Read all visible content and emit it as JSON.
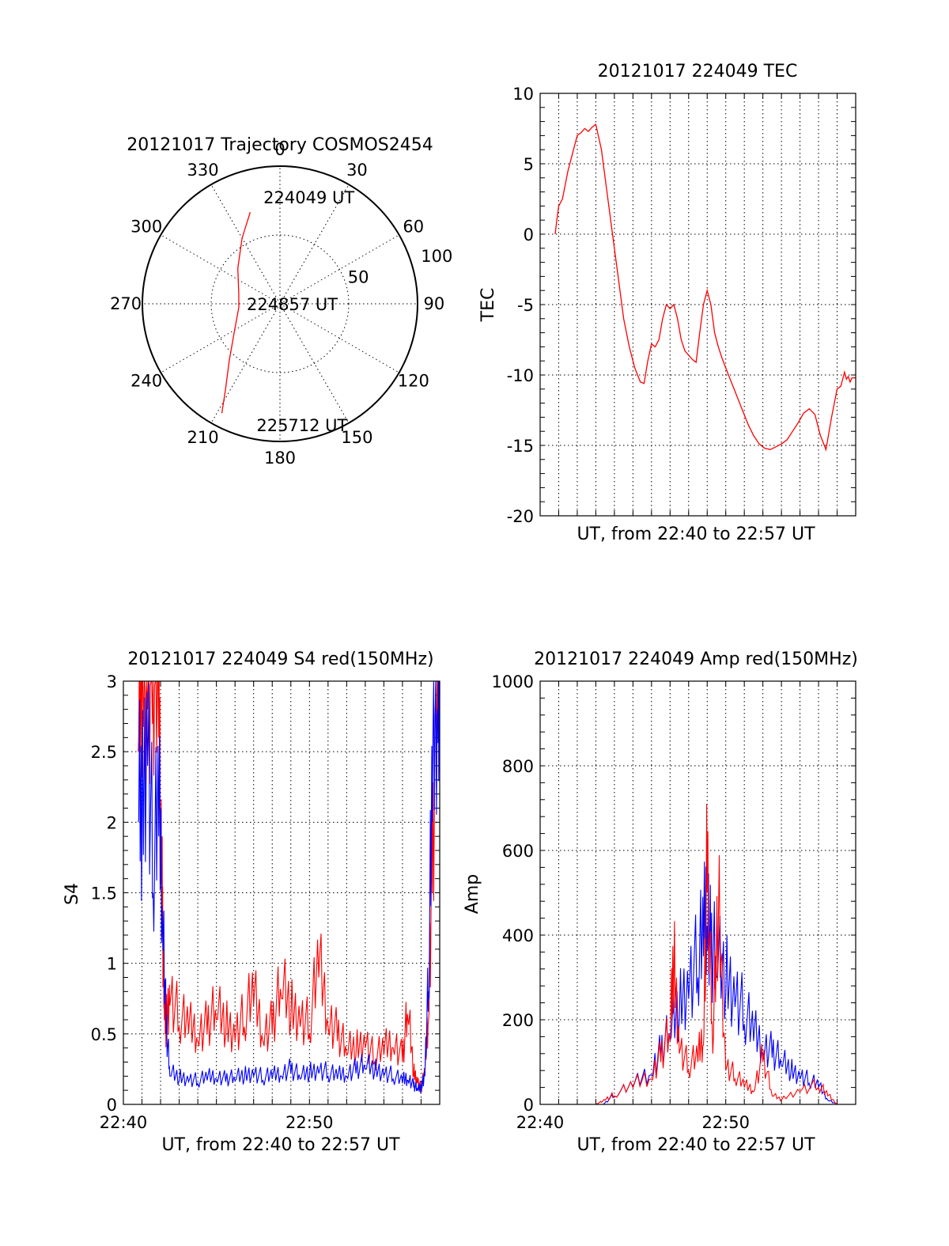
{
  "colors": {
    "red": "#ff0000",
    "blue": "#0000ff",
    "axes": "#000000"
  },
  "chart_data": [
    {
      "type": "polar",
      "title": "20121017 Trajectory COSMOS2454",
      "azimuth_labels": [
        "0",
        "30",
        "60",
        "90",
        "120",
        "150",
        "180",
        "210",
        "240",
        "270",
        "300",
        "330"
      ],
      "radial_labels": [
        "50",
        "100"
      ],
      "grid": true,
      "series": [
        {
          "color": "red",
          "points": [
            {
              "az": 342,
              "r": 70
            },
            {
              "az": 330,
              "r": 55
            },
            {
              "az": 310,
              "r": 40
            },
            {
              "az": 285,
              "r": 31
            },
            {
              "az": 265,
              "r": 30
            },
            {
              "az": 240,
              "r": 38
            },
            {
              "az": 222,
              "r": 55
            },
            {
              "az": 212,
              "r": 75
            },
            {
              "az": 208,
              "r": 90
            }
          ]
        }
      ],
      "annotations": [
        {
          "text": "224049 UT",
          "az": 6,
          "r": 78
        },
        {
          "text": "224857 UT",
          "az": 270,
          "r": 4
        },
        {
          "text": "225712 UT",
          "az": 178,
          "r": 88
        }
      ]
    },
    {
      "type": "line",
      "title": "20121017 224049 TEC",
      "xlabel": "UT, from 22:40 to 22:57 UT",
      "ylabel": "TEC",
      "xlim": [
        0,
        17
      ],
      "ylim": [
        -20,
        10
      ],
      "yticks": [
        10,
        5,
        0,
        -5,
        -10,
        -15,
        -20
      ],
      "grid": true,
      "series": [
        {
          "color": "red",
          "x": [
            0.81,
            0.9,
            1.0,
            1.2,
            1.5,
            1.8,
            2.0,
            2.2,
            2.4,
            2.6,
            2.8,
            3.0,
            3.3,
            3.6,
            3.9,
            4.2,
            4.5,
            4.8,
            5.1,
            5.4,
            5.6,
            5.8,
            6.0,
            6.2,
            6.4,
            6.6,
            6.8,
            7.0,
            7.2,
            7.4,
            7.6,
            7.8,
            8.0,
            8.2,
            8.4,
            8.6,
            8.8,
            9.0,
            9.2,
            9.4,
            9.6,
            9.8,
            10.0,
            10.3,
            10.6,
            10.9,
            11.2,
            11.5,
            11.8,
            12.1,
            12.4,
            12.7,
            13.0,
            13.3,
            13.6,
            13.9,
            14.2,
            14.5,
            14.8,
            15.1,
            15.4,
            15.7,
            16.0,
            16.2,
            16.3,
            16.4,
            16.5,
            16.6,
            16.7,
            16.8,
            17.0
          ],
          "y": [
            0.0,
            1.0,
            2.0,
            2.5,
            4.5,
            6.0,
            7.0,
            7.2,
            7.5,
            7.3,
            7.6,
            7.8,
            6.0,
            3.0,
            0.0,
            -3.0,
            -6.0,
            -8.0,
            -9.5,
            -10.5,
            -10.6,
            -9.0,
            -7.8,
            -8.0,
            -7.5,
            -6.0,
            -5.0,
            -5.3,
            -5.0,
            -6.0,
            -7.5,
            -8.3,
            -8.6,
            -8.9,
            -9.1,
            -7.0,
            -5.0,
            -4.0,
            -5.0,
            -7.0,
            -8.0,
            -8.8,
            -9.5,
            -10.5,
            -11.5,
            -12.5,
            -13.5,
            -14.3,
            -14.9,
            -15.2,
            -15.3,
            -15.1,
            -14.9,
            -14.6,
            -14.0,
            -13.4,
            -12.7,
            -12.4,
            -12.8,
            -14.3,
            -15.3,
            -13.0,
            -11.0,
            -10.8,
            -10.3,
            -9.8,
            -10.3,
            -10.1,
            -10.5,
            -10.2,
            -10.2
          ]
        }
      ]
    },
    {
      "type": "line",
      "title": "20121017 224049 S4 red(150MHz)",
      "xlabel": "UT, from 22:40 to 22:57 UT",
      "ylabel": "S4",
      "xticklabels": [
        "22:40",
        "22:50"
      ],
      "xlim": [
        0,
        17
      ],
      "ylim": [
        0,
        3
      ],
      "yticks": [
        0,
        0.5,
        1,
        1.5,
        2,
        2.5,
        3
      ],
      "grid": true,
      "series": [
        {
          "color": "red",
          "x": [
            0.8,
            1.0,
            1.3,
            1.6,
            1.9,
            2.0,
            2.1,
            2.2,
            2.3,
            2.5,
            3.0,
            3.5,
            4.0,
            4.5,
            5.0,
            5.5,
            6.0,
            6.5,
            7.0,
            7.5,
            8.0,
            8.5,
            9.0,
            9.5,
            10.0,
            10.5,
            11.0,
            11.5,
            12.0,
            12.5,
            13.0,
            13.5,
            14.0,
            14.5,
            15.0,
            15.3,
            15.6,
            15.8,
            16.0,
            16.2,
            16.4,
            16.6,
            16.9,
            17.0
          ],
          "y": [
            2.5,
            3.0,
            2.8,
            3.0,
            2.6,
            1.8,
            1.2,
            0.6,
            0.5,
            0.7,
            0.55,
            0.5,
            0.45,
            0.5,
            0.6,
            0.5,
            0.45,
            0.55,
            0.7,
            0.45,
            0.5,
            0.75,
            0.6,
            0.55,
            0.5,
            0.9,
            0.55,
            0.45,
            0.35,
            0.35,
            0.4,
            0.3,
            0.35,
            0.4,
            0.3,
            0.6,
            0.2,
            0.15,
            0.1,
            0.2,
            0.6,
            1.5,
            2.8,
            3.0
          ]
        },
        {
          "color": "blue",
          "x": [
            0.8,
            1.0,
            1.3,
            1.6,
            1.9,
            2.1,
            2.3,
            2.5,
            3.0,
            3.5,
            4.0,
            4.5,
            5.0,
            5.5,
            6.0,
            6.5,
            7.0,
            7.5,
            8.0,
            8.5,
            9.0,
            9.5,
            10.0,
            10.5,
            11.0,
            11.5,
            12.0,
            12.5,
            13.0,
            13.5,
            14.0,
            14.5,
            15.0,
            15.3,
            15.6,
            15.8,
            16.0,
            16.2,
            16.4,
            16.6,
            16.9,
            17.0
          ],
          "y": [
            2.0,
            1.8,
            2.4,
            1.5,
            1.9,
            1.3,
            0.5,
            0.2,
            0.17,
            0.16,
            0.15,
            0.17,
            0.18,
            0.16,
            0.17,
            0.18,
            0.2,
            0.17,
            0.18,
            0.2,
            0.22,
            0.18,
            0.2,
            0.22,
            0.2,
            0.18,
            0.2,
            0.22,
            0.25,
            0.22,
            0.2,
            0.18,
            0.15,
            0.17,
            0.12,
            0.1,
            0.1,
            0.2,
            0.8,
            2.0,
            2.8,
            3.0
          ]
        }
      ]
    },
    {
      "type": "line",
      "title": "20121017 224049 Amp red(150MHz)",
      "xlabel": "UT, from 22:40 to 22:57 UT",
      "ylabel": "Amp",
      "xticklabels": [
        "22:40",
        "22:50"
      ],
      "xlim": [
        0,
        17
      ],
      "ylim": [
        0,
        1000
      ],
      "yticks": [
        0,
        200,
        400,
        600,
        800,
        1000
      ],
      "grid": true,
      "series": [
        {
          "color": "blue",
          "x": [
            0.8,
            2.5,
            3.4,
            4.0,
            5.0,
            6.0,
            6.5,
            7.0,
            7.5,
            8.0,
            8.5,
            8.8,
            9.0,
            9.2,
            9.5,
            10.0,
            10.5,
            11.0,
            11.5,
            12.0,
            12.5,
            13.0,
            13.5,
            14.0,
            14.5,
            15.0,
            15.5,
            16.0,
            17.0
          ],
          "y": [
            0,
            0,
            0,
            20,
            40,
            70,
            110,
            150,
            200,
            250,
            300,
            350,
            420,
            320,
            300,
            260,
            230,
            190,
            150,
            120,
            110,
            90,
            70,
            60,
            50,
            40,
            10,
            0,
            0
          ]
        },
        {
          "color": "red",
          "x": [
            0.8,
            3.0,
            3.5,
            4.0,
            5.0,
            6.0,
            6.5,
            7.0,
            7.2,
            7.5,
            8.0,
            8.5,
            8.8,
            9.0,
            9.3,
            9.6,
            10.0,
            10.5,
            11.0,
            11.5,
            12.0,
            12.5,
            13.0,
            14.0,
            15.0,
            15.5,
            16.0,
            17.0
          ],
          "y": [
            0,
            0,
            10,
            20,
            40,
            60,
            100,
            150,
            300,
            120,
            80,
            100,
            140,
            500,
            120,
            420,
            80,
            60,
            40,
            30,
            100,
            20,
            10,
            30,
            40,
            20,
            0,
            0
          ]
        }
      ]
    }
  ]
}
